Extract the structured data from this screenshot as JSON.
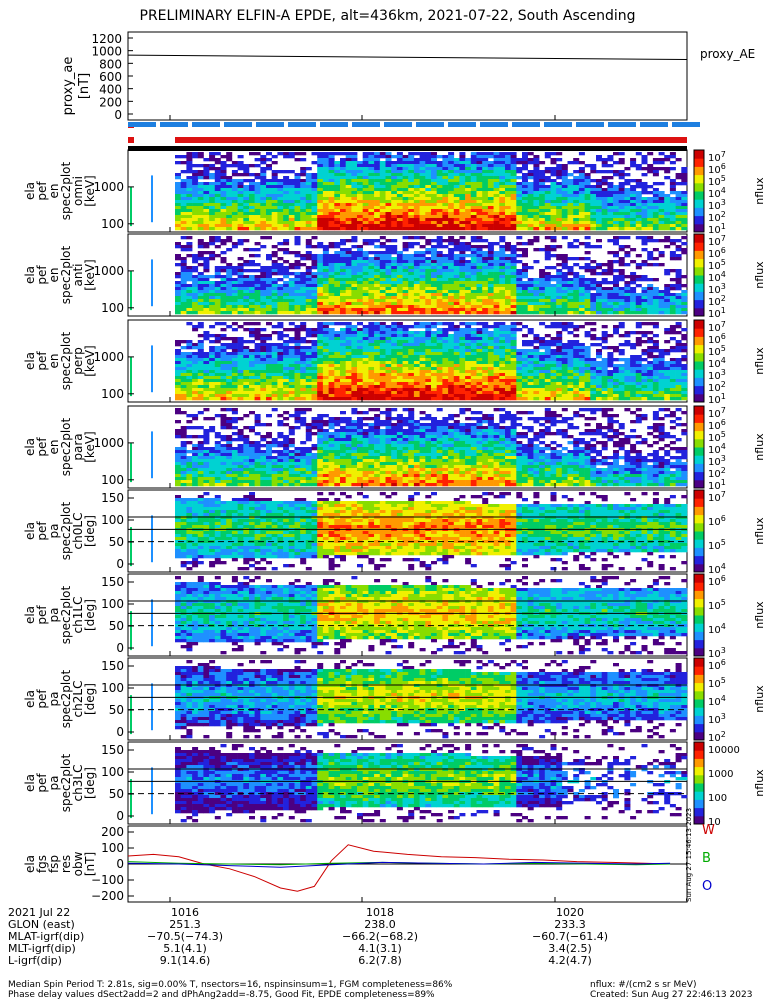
{
  "title": "PRELIMINARY ELFIN-A EPDE, alt=436km, 2021-07-22, South Ascending",
  "colors": {
    "red": "#dd1111",
    "blue": "#1e7fe0",
    "black": "#000000",
    "W": "#cc0000",
    "B": "#00aa00",
    "O": "#0000cc"
  },
  "colorscale": [
    "#4b0082",
    "#2222dd",
    "#1e90ff",
    "#00d2d2",
    "#00cc66",
    "#88dd00",
    "#f0f000",
    "#ff9900",
    "#ff2200",
    "#cc0000"
  ],
  "panels": [
    {
      "id": "proxy_ae",
      "label": "proxy_ae\n[nT]",
      "ticks": [
        "1200",
        "1000",
        "800",
        "600",
        "400",
        "200",
        "0"
      ],
      "right_label": "proxy_AE"
    },
    {
      "id": "ela_pef_en_spec2plot_omni",
      "label": "ela\npef\nen\nspec2plot\nomni\n[keV]",
      "ticks": [
        "1000",
        "100"
      ],
      "cbar_ticks": [
        "10^7",
        "10^6",
        "10^5",
        "10^4",
        "10^3",
        "10^2",
        "10^1"
      ],
      "cbar_label": "nflux"
    },
    {
      "id": "ela_pef_en_spec2plot_anti",
      "label": "ela\npef\nen\nspec2plot\nanti\n[keV]",
      "ticks": [
        "1000",
        "100"
      ],
      "cbar_ticks": [
        "10^7",
        "10^6",
        "10^5",
        "10^4",
        "10^3",
        "10^2",
        "10^1"
      ],
      "cbar_label": "nflux"
    },
    {
      "id": "ela_pef_en_spec2plot_perp",
      "label": "ela\npef\nen\nspec2plot\nperp\n[keV]",
      "ticks": [
        "1000",
        "100"
      ],
      "cbar_ticks": [
        "10^7",
        "10^6",
        "10^5",
        "10^4",
        "10^3",
        "10^2",
        "10^1"
      ],
      "cbar_label": "nflux"
    },
    {
      "id": "ela_pef_en_spec2plot_para",
      "label": "ela\npef\nen\nspec2plot\npara\n[keV]",
      "ticks": [
        "1000",
        "100"
      ],
      "cbar_ticks": [
        "10^7",
        "10^6",
        "10^5",
        "10^4",
        "10^3",
        "10^2",
        "10^1"
      ],
      "cbar_label": "nflux"
    },
    {
      "id": "ela_pef_pa_spec2plot_ch0LC",
      "label": "ela\npef\npa\nspec2plot\nch0LC\n[deg]",
      "ticks": [
        "150",
        "100",
        "50",
        "0"
      ],
      "cbar_ticks": [
        "10^7",
        "10^6",
        "10^5",
        "10^4"
      ],
      "cbar_label": "nflux"
    },
    {
      "id": "ela_pef_pa_spec2plot_ch1LC",
      "label": "ela\npef\npa\nspec2plot\nch1LC\n[deg]",
      "ticks": [
        "150",
        "100",
        "50",
        "0"
      ],
      "cbar_ticks": [
        "10^6",
        "10^5",
        "10^4",
        "10^3"
      ],
      "cbar_label": "nflux"
    },
    {
      "id": "ela_pef_pa_spec2plot_ch2LC",
      "label": "ela\npef\npa\nspec2plot\nch2LC\n[deg]",
      "ticks": [
        "150",
        "100",
        "50",
        "0"
      ],
      "cbar_ticks": [
        "10^6",
        "10^5",
        "10^4",
        "10^3",
        "10^2"
      ],
      "cbar_label": "nflux"
    },
    {
      "id": "ela_pef_pa_spec2plot_ch3LC",
      "label": "ela\npef\npa\nspec2plot\nch3LC\n[deg]",
      "ticks": [
        "150",
        "100",
        "50",
        "0"
      ],
      "cbar_ticks": [
        "10000",
        "1000",
        "100",
        "10"
      ],
      "cbar_label": "nflux"
    },
    {
      "id": "ela_fgs_fsp_res_obw",
      "label": "ela\nfgs\nfsp\nres\nobw\n[nT]",
      "ticks": [
        "200",
        "100",
        "0",
        "−100",
        "−200"
      ],
      "right_labels": [
        "W",
        "B",
        "O"
      ]
    }
  ],
  "xaxis": {
    "ticks": [
      "1016",
      "1018",
      "1020"
    ]
  },
  "ephemeris": {
    "rows": [
      "2021 Jul 22",
      "GLON (east)",
      "MLAT-igrf(dip)",
      "MLT-igrf(dip)",
      "L-igrf(dip)"
    ],
    "col1": [
      "1016",
      "251.3",
      "−70.5(−74.3)",
      "5.1(4.1)",
      "9.1(14.6)"
    ],
    "col2": [
      "1018",
      "238.0",
      "−66.2(−68.2)",
      "4.1(3.1)",
      "6.2(7.8)"
    ],
    "col3": [
      "1020",
      "233.3",
      "−60.7(−61.4)",
      "3.4(2.5)",
      "4.2(4.7)"
    ]
  },
  "footer": {
    "line1": "Median Spin Period T: 2.81s, sig=0.00% T, nsectors=16, nspinsinsum=1, FGM completeness=86%",
    "line2": "Phase delay values dSect2add=2 and dPhAng2add=-8.75, Good Fit, EPDE completeness=89%",
    "right1": "nflux: #/(cm2 s sr MeV)",
    "right2": "Created: Sun Aug 27 22:46:13 2023",
    "vertical": "Sun Aug 27 15:46:13 2023"
  },
  "chart_data": {
    "type": "heatmap",
    "title": "PRELIMINARY ELFIN-A EPDE, alt=436km, 2021-07-22, South Ascending",
    "x_ticks": [
      "1016",
      "1018",
      "1020"
    ],
    "proxy_ae": {
      "x": [
        "1015",
        "1021.5"
      ],
      "y": [
        930,
        860
      ],
      "ylim": [
        0,
        1200
      ]
    },
    "fgs_series": [
      {
        "name": "W",
        "color": "#cc0000",
        "x": [
          1015.0,
          1015.3,
          1015.6,
          1015.9,
          1016.2,
          1016.5,
          1016.8,
          1017.0,
          1017.2,
          1017.4,
          1017.6,
          1017.9,
          1018.3,
          1018.7,
          1019.1,
          1019.5,
          1019.9,
          1020.3,
          1020.7,
          1021.1,
          1021.4
        ],
        "y": [
          50,
          60,
          45,
          0,
          -30,
          -80,
          -150,
          -170,
          -140,
          20,
          120,
          80,
          60,
          45,
          40,
          30,
          25,
          15,
          10,
          5,
          0
        ]
      },
      {
        "name": "B",
        "color": "#00aa00",
        "x": [
          1015.0,
          1015.6,
          1016.2,
          1016.8,
          1017.4,
          1018.0,
          1018.6,
          1019.2,
          1019.8,
          1020.4,
          1021.0,
          1021.4
        ],
        "y": [
          15,
          5,
          0,
          -5,
          5,
          10,
          5,
          0,
          5,
          0,
          -5,
          0
        ]
      },
      {
        "name": "O",
        "color": "#0000cc",
        "x": [
          1015.0,
          1015.6,
          1016.2,
          1016.8,
          1017.4,
          1018.0,
          1018.6,
          1019.2,
          1019.8,
          1020.4,
          1021.0,
          1021.4
        ],
        "y": [
          5,
          0,
          -10,
          -20,
          -5,
          10,
          5,
          0,
          10,
          5,
          0,
          5
        ]
      }
    ]
  }
}
